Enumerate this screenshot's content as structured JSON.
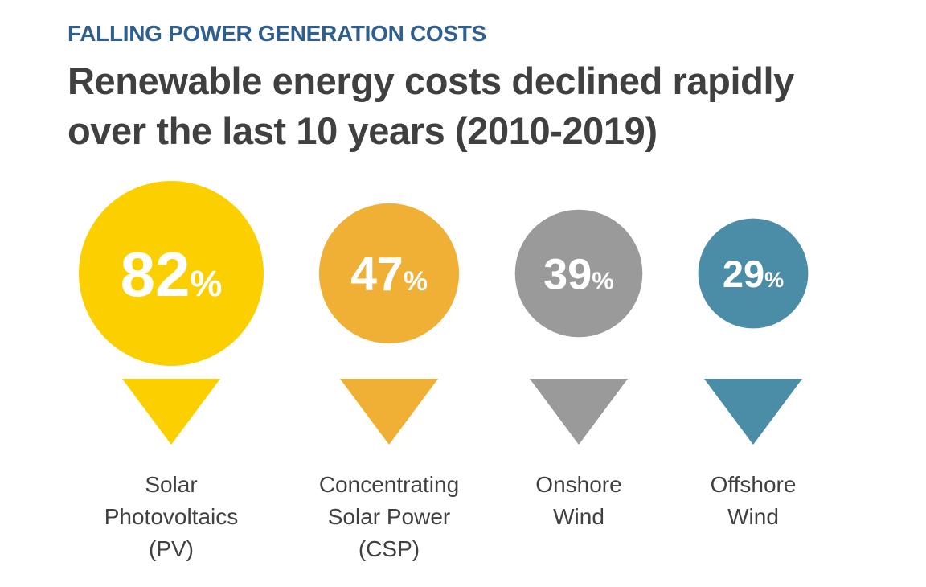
{
  "header": {
    "eyebrow": "FALLING POWER GENERATION COSTS",
    "title_line1": "Renewable energy costs declined rapidly",
    "title_line2": "over the last 10 years (2010-2019)"
  },
  "chart_data": {
    "type": "bubble-infographic",
    "value_unit": "%",
    "categories": [
      {
        "label_lines": [
          "Solar",
          "Photovoltaics",
          "(PV)"
        ],
        "value": 82,
        "color": "#fcd000"
      },
      {
        "label_lines": [
          "Concentrating",
          "Solar Power",
          "(CSP)"
        ],
        "value": 47,
        "color": "#f0b035"
      },
      {
        "label_lines": [
          "Onshore",
          "Wind"
        ],
        "value": 39,
        "color": "#9a9a9a"
      },
      {
        "label_lines": [
          "Offshore",
          "Wind"
        ],
        "value": 29,
        "color": "#4b8ca6"
      }
    ]
  }
}
